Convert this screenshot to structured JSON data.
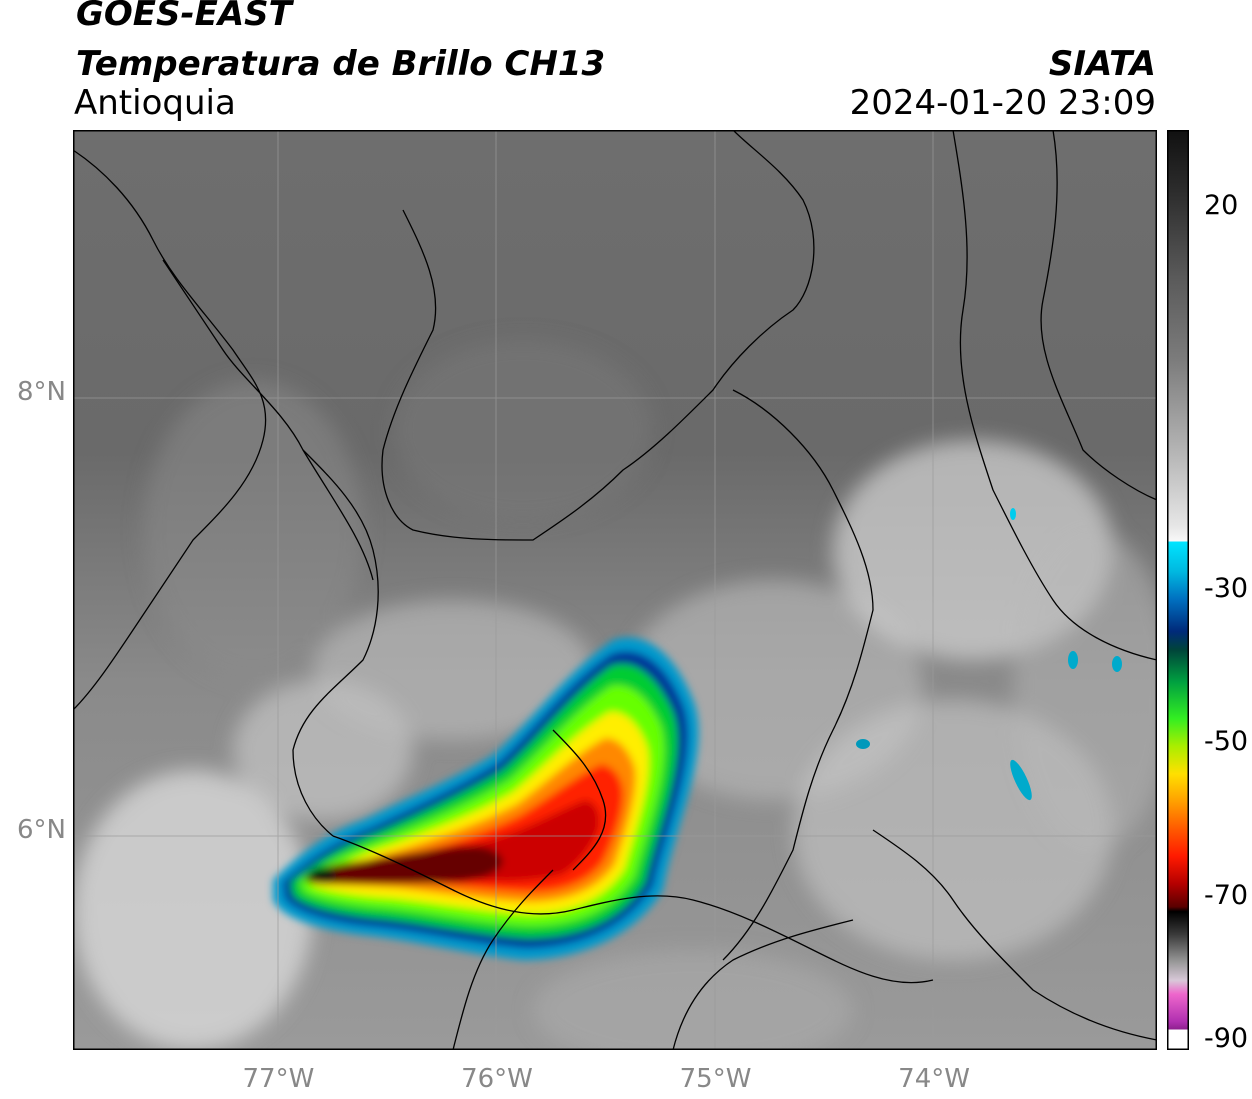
{
  "header": {
    "satellite": "GOES-EAST",
    "product": "Temperatura de Brillo CH13",
    "region": "Antioquia",
    "organization": "SIATA",
    "timestamp": "2024-01-20 23:09"
  },
  "map": {
    "lat_range": [
      5.0,
      9.2
    ],
    "lon_range": [
      -77.94,
      -72.98
    ],
    "lat_ticks": [
      {
        "value": 8,
        "label": "8°N"
      },
      {
        "value": 6,
        "label": "6°N"
      }
    ],
    "lon_ticks": [
      {
        "value": -77,
        "label": "77°W"
      },
      {
        "value": -76,
        "label": "76°W"
      },
      {
        "value": -75,
        "label": "75°W"
      },
      {
        "value": -74,
        "label": "74°W"
      }
    ],
    "storm_color_scale": [
      "#0099cc",
      "#003399",
      "#00cc33",
      "#66ff00",
      "#ffee00",
      "#ff8800",
      "#ff2200",
      "#cc0000",
      "#660000"
    ]
  },
  "colorbar": {
    "range": [
      -90,
      30
    ],
    "ticks": [
      {
        "value": 20,
        "label": "20"
      },
      {
        "value": -30,
        "label": "-30"
      },
      {
        "value": -50,
        "label": "-50"
      },
      {
        "value": -70,
        "label": "-70"
      },
      {
        "value": -90,
        "label": "-90"
      }
    ]
  }
}
